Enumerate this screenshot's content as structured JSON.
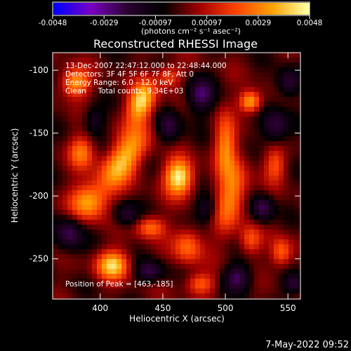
{
  "chart_data": {
    "type": "heatmap",
    "title": "Reconstructed RHESSI Image",
    "xlabel": "Heliocentric X (arcsec)",
    "ylabel": "Heliocentric Y (arcsec)",
    "xlim": [
      362,
      560
    ],
    "ylim": [
      -282,
      -86
    ],
    "x_ticks": [
      400,
      450,
      500,
      550
    ],
    "y_ticks": [
      -100,
      -150,
      -200,
      -250
    ],
    "colorbar": {
      "min": -0.0048,
      "max": 0.0048,
      "ticks": [
        "-0.0048",
        "-0.0029",
        "-0.00097",
        "0.00097",
        "0.0029",
        "0.0048"
      ],
      "unit_label": "(photons cm⁻² s⁻¹ asec⁻²)",
      "colors": [
        "#0000ff",
        "#7a00c4",
        "#2a0030",
        "#000000",
        "#a00000",
        "#ff4000",
        "#ffa000",
        "#ffffa0"
      ]
    },
    "annotations": [
      "13-Dec-2007 22:47:12.000 to 22:48:44.000",
      "Detectors: 3F 4F 5F 6F 7F 8F, Att 0",
      "Energy Range: 6.0 - 12.0 keV",
      "Clean     Total counts: 9.34E+03"
    ],
    "peak_label": "Position of Peak = [463,-185]",
    "peak": [
      463,
      -185
    ],
    "blobs": [
      {
        "x": 463,
        "y": -185,
        "v": 1.0,
        "sx": 8,
        "sy": 10
      },
      {
        "x": 418,
        "y": -172,
        "v": 0.8,
        "sx": 9,
        "sy": 22,
        "rot": -35
      },
      {
        "x": 433,
        "y": -125,
        "v": 0.9,
        "sx": 7,
        "sy": 12,
        "rot": -20
      },
      {
        "x": 410,
        "y": -255,
        "v": 0.85,
        "sx": 9,
        "sy": 8
      },
      {
        "x": 380,
        "y": -110,
        "v": 0.7,
        "sx": 8,
        "sy": 8
      },
      {
        "x": 520,
        "y": -125,
        "v": 0.8,
        "sx": 6,
        "sy": 6
      },
      {
        "x": 505,
        "y": -200,
        "v": 0.65,
        "sx": 8,
        "sy": 20,
        "rot": -10
      },
      {
        "x": 500,
        "y": -160,
        "v": 0.6,
        "sx": 6,
        "sy": 16
      },
      {
        "x": 390,
        "y": -205,
        "v": 0.65,
        "sx": 10,
        "sy": 10
      },
      {
        "x": 470,
        "y": -240,
        "v": 0.55,
        "sx": 8,
        "sy": 10
      },
      {
        "x": 545,
        "y": -245,
        "v": 0.55,
        "sx": 6,
        "sy": 8
      },
      {
        "x": 480,
        "y": -270,
        "v": 0.5,
        "sx": 8,
        "sy": 6
      },
      {
        "x": 440,
        "y": -225,
        "v": 0.55,
        "sx": 8,
        "sy": 6
      },
      {
        "x": 385,
        "y": -165,
        "v": 0.55,
        "sx": 7,
        "sy": 9
      },
      {
        "x": 540,
        "y": -175,
        "v": 0.45,
        "sx": 6,
        "sy": 10
      },
      {
        "x": 520,
        "y": -235,
        "v": 0.45,
        "sx": 6,
        "sy": 8
      },
      {
        "x": 455,
        "y": -105,
        "v": 0.45,
        "sx": 7,
        "sy": 6
      },
      {
        "x": 455,
        "y": -145,
        "v": -0.45,
        "sx": 7,
        "sy": 10
      },
      {
        "x": 480,
        "y": -120,
        "v": -0.5,
        "sx": 8,
        "sy": 10
      },
      {
        "x": 540,
        "y": -145,
        "v": -0.5,
        "sx": 8,
        "sy": 10
      },
      {
        "x": 550,
        "y": -110,
        "v": -0.45,
        "sx": 7,
        "sy": 8
      },
      {
        "x": 530,
        "y": -210,
        "v": -0.5,
        "sx": 6,
        "sy": 8
      },
      {
        "x": 510,
        "y": -265,
        "v": -0.5,
        "sx": 8,
        "sy": 8
      },
      {
        "x": 440,
        "y": -260,
        "v": -0.45,
        "sx": 8,
        "sy": 6
      },
      {
        "x": 375,
        "y": -230,
        "v": -0.5,
        "sx": 8,
        "sy": 10
      },
      {
        "x": 420,
        "y": -215,
        "v": -0.4,
        "sx": 7,
        "sy": 7
      },
      {
        "x": 485,
        "y": -210,
        "v": -0.4,
        "sx": 6,
        "sy": 8
      },
      {
        "x": 395,
        "y": -140,
        "v": -0.35,
        "sx": 6,
        "sy": 8
      },
      {
        "x": 555,
        "y": -270,
        "v": -0.45,
        "sx": 6,
        "sy": 6
      }
    ]
  },
  "footer": {
    "timestamp": "7-May-2022 09:52"
  }
}
